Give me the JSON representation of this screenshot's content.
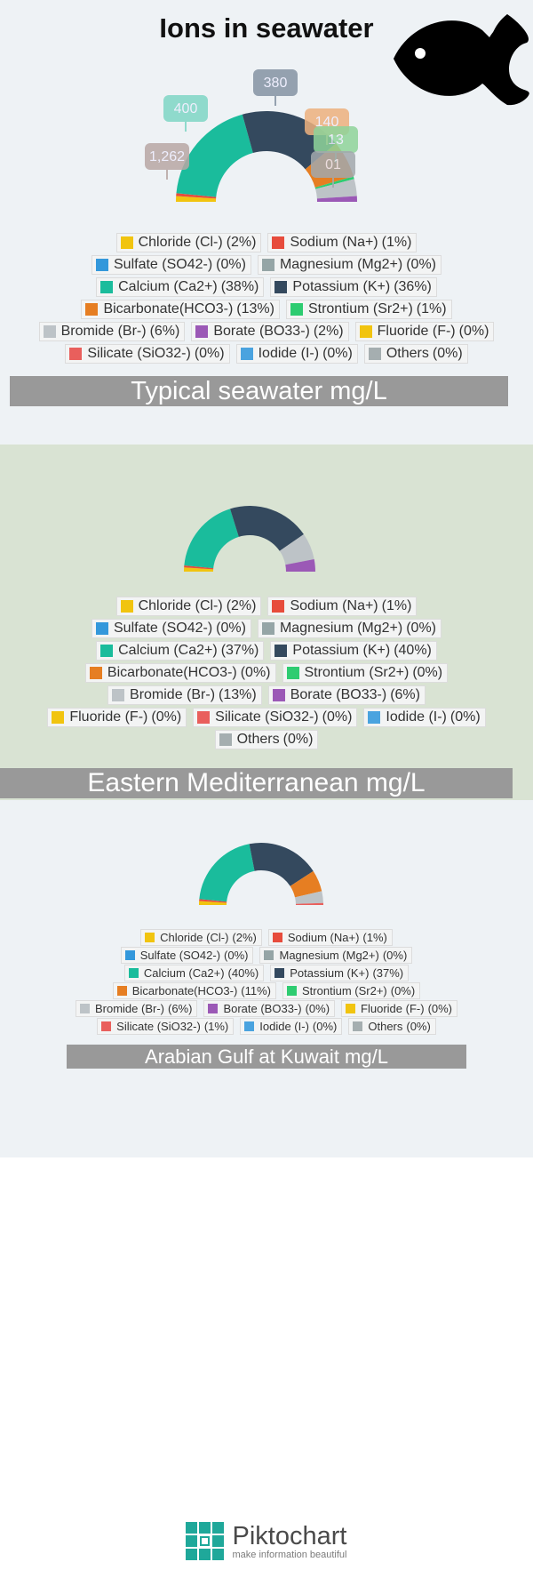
{
  "title": "Ions in seawater",
  "chart_data": [
    {
      "type": "pie",
      "donut": true,
      "semicircle": true,
      "title": "Typical seawater mg/L",
      "categories": [
        "Chloride (Cl-)",
        "Sodium (Na+)",
        "Sulfate (SO42-)",
        "Magnesium (Mg2+)",
        "Calcium (Ca2+)",
        "Potassium (K+)",
        "Bicarbonate(HCO3-)",
        "Strontium (Sr2+)",
        "Bromide (Br-)",
        "Borate (BO33-)",
        "Fluoride (F-)",
        "Silicate (SiO32-)",
        "Iodide (I-)",
        "Others"
      ],
      "values": [
        2,
        1,
        0,
        0,
        38,
        36,
        13,
        1,
        6,
        2,
        0,
        0,
        0,
        0
      ],
      "value_labels": [
        "(2%)",
        "(1%)",
        "(0%)",
        "(0%)",
        "(38%)",
        "(36%)",
        "(13%)",
        "(1%)",
        "(6%)",
        "(2%)",
        "(0%)",
        "(0%)",
        "(0%)",
        "(0%)"
      ],
      "colors": [
        "#f1c40f",
        "#e74c3c",
        "#3498db",
        "#95a5a6",
        "#1abc9c",
        "#34495e",
        "#e67e22",
        "#2ecc71",
        "#bdc3c7",
        "#9b59b6",
        "#f1c40f",
        "#e95f5c",
        "#4aa3df",
        "#a5aeb0"
      ],
      "annotations": [
        "400",
        "380",
        "1,262",
        "140",
        "13",
        "01"
      ]
    },
    {
      "type": "pie",
      "donut": true,
      "semicircle": true,
      "title": "Eastern Mediterranean mg/L",
      "categories": [
        "Chloride (Cl-)",
        "Sodium (Na+)",
        "Sulfate (SO42-)",
        "Magnesium (Mg2+)",
        "Calcium (Ca2+)",
        "Potassium (K+)",
        "Bicarbonate(HCO3-)",
        "Strontium (Sr2+)",
        "Bromide (Br-)",
        "Borate (BO33-)",
        "Fluoride (F-)",
        "Silicate (SiO32-)",
        "Iodide (I-)",
        "Others"
      ],
      "values": [
        2,
        1,
        0,
        0,
        37,
        40,
        0,
        0,
        13,
        6,
        0,
        0,
        0,
        0
      ],
      "value_labels": [
        "(2%)",
        "(1%)",
        "(0%)",
        "(0%)",
        "(37%)",
        "(40%)",
        "(0%)",
        "(0%)",
        "(13%)",
        "(6%)",
        "(0%)",
        "(0%)",
        "(0%)",
        "(0%)"
      ],
      "colors": [
        "#f1c40f",
        "#e74c3c",
        "#3498db",
        "#95a5a6",
        "#1abc9c",
        "#34495e",
        "#e67e22",
        "#2ecc71",
        "#bdc3c7",
        "#9b59b6",
        "#f1c40f",
        "#e95f5c",
        "#4aa3df",
        "#a5aeb0"
      ]
    },
    {
      "type": "pie",
      "donut": true,
      "semicircle": true,
      "title": "Arabian Gulf at Kuwait mg/L",
      "categories": [
        "Chloride (Cl-)",
        "Sodium (Na+)",
        "Sulfate (SO42-)",
        "Magnesium (Mg2+)",
        "Calcium (Ca2+)",
        "Potassium (K+)",
        "Bicarbonate(HCO3-)",
        "Strontium (Sr2+)",
        "Bromide (Br-)",
        "Borate (BO33-)",
        "Fluoride (F-)",
        "Silicate (SiO32-)",
        "Iodide (I-)",
        "Others"
      ],
      "values": [
        2,
        1,
        0,
        0,
        40,
        37,
        11,
        0,
        6,
        0,
        0,
        1,
        0,
        0
      ],
      "value_labels": [
        "(2%)",
        "(1%)",
        "(0%)",
        "(0%)",
        "(40%)",
        "(37%)",
        "(11%)",
        "(0%)",
        "(6%)",
        "(0%)",
        "(0%)",
        "(1%)",
        "(0%)",
        "(0%)"
      ],
      "colors": [
        "#f1c40f",
        "#e74c3c",
        "#3498db",
        "#95a5a6",
        "#1abc9c",
        "#34495e",
        "#e67e22",
        "#2ecc71",
        "#bdc3c7",
        "#9b59b6",
        "#f1c40f",
        "#e95f5c",
        "#4aa3df",
        "#a5aeb0"
      ]
    }
  ],
  "footer": {
    "brand": "Piktochart",
    "tagline": "make information beautiful"
  }
}
